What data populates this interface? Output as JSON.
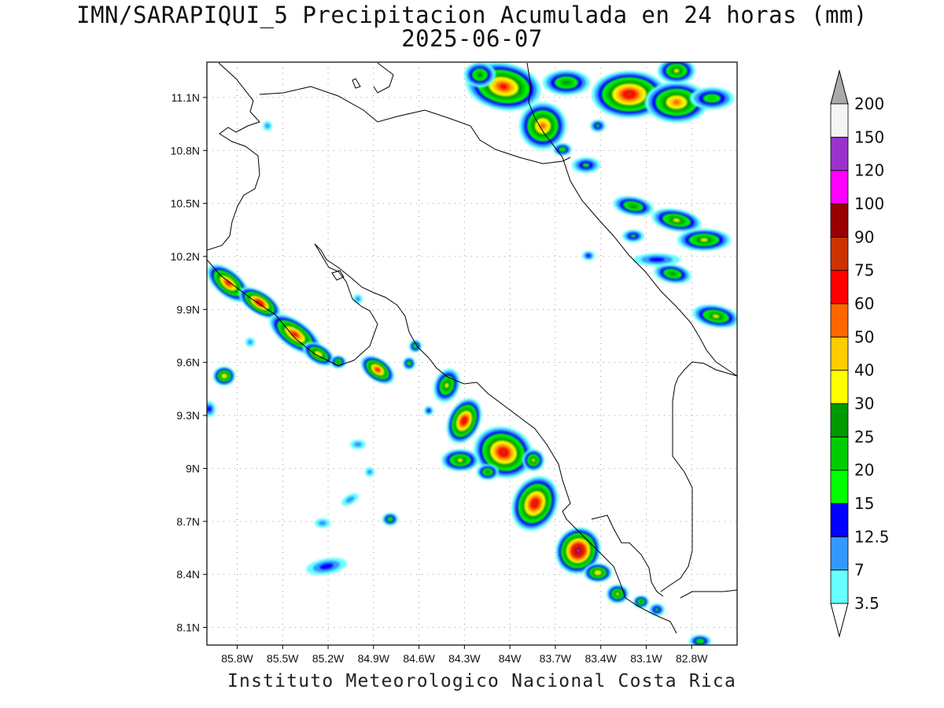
{
  "header": {
    "title": "IMN/SARAPIQUI_5 Precipitacion Acumulada en 24 horas (mm)",
    "date": "2025-06-07"
  },
  "footer": "Instituto Meteorologico Nacional Costa Rica",
  "map": {
    "lon_range": [
      -86.0,
      -82.5
    ],
    "lat_range": [
      8.0,
      11.3
    ],
    "lat_ticks": [
      {
        "label": "11.1N",
        "value": 11.1
      },
      {
        "label": "10.8N",
        "value": 10.8
      },
      {
        "label": "10.5N",
        "value": 10.5
      },
      {
        "label": "10.2N",
        "value": 10.2
      },
      {
        "label": "9.9N",
        "value": 9.9
      },
      {
        "label": "9.6N",
        "value": 9.6
      },
      {
        "label": "9.3N",
        "value": 9.3
      },
      {
        "label": "9N",
        "value": 9.0
      },
      {
        "label": "8.7N",
        "value": 8.7
      },
      {
        "label": "8.4N",
        "value": 8.4
      },
      {
        "label": "8.1N",
        "value": 8.1
      }
    ],
    "lon_ticks": [
      {
        "label": "85.8W",
        "value": -85.8
      },
      {
        "label": "85.5W",
        "value": -85.5
      },
      {
        "label": "85.2W",
        "value": -85.2
      },
      {
        "label": "84.9W",
        "value": -84.9
      },
      {
        "label": "84.6W",
        "value": -84.6
      },
      {
        "label": "84.3W",
        "value": -84.3
      },
      {
        "label": "84W",
        "value": -84.0
      },
      {
        "label": "83.7W",
        "value": -83.7
      },
      {
        "label": "83.4W",
        "value": -83.4
      },
      {
        "label": "83.1W",
        "value": -83.1
      },
      {
        "label": "82.8W",
        "value": -82.8
      }
    ]
  },
  "colorbar": {
    "levels": [
      {
        "label": "3.5",
        "color": "#66ffff"
      },
      {
        "label": "7",
        "color": "#3399ff"
      },
      {
        "label": "12.5",
        "color": "#0000ff"
      },
      {
        "label": "15",
        "color": "#00ff00"
      },
      {
        "label": "20",
        "color": "#00cc00"
      },
      {
        "label": "25",
        "color": "#009900"
      },
      {
        "label": "30",
        "color": "#ffff00"
      },
      {
        "label": "40",
        "color": "#ffcc00"
      },
      {
        "label": "50",
        "color": "#ff6600"
      },
      {
        "label": "60",
        "color": "#ff0000"
      },
      {
        "label": "75",
        "color": "#cc3300"
      },
      {
        "label": "90",
        "color": "#990000"
      },
      {
        "label": "100",
        "color": "#ff00ff"
      },
      {
        "label": "120",
        "color": "#9933cc"
      },
      {
        "label": "150",
        "color": "#f5f5f5"
      },
      {
        "label": "200",
        "color": "#aaaaaa"
      }
    ],
    "top_color": "#aaaaaa"
  }
}
